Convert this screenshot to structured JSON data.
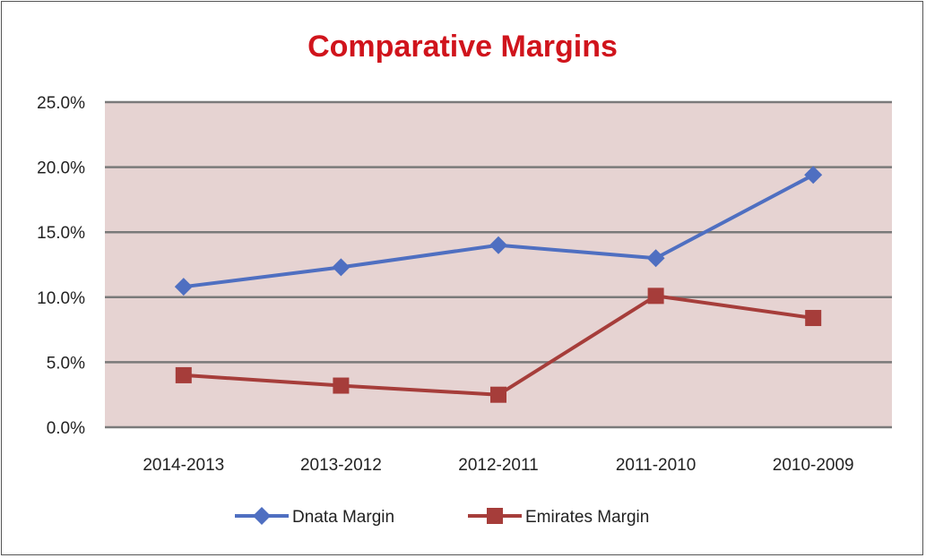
{
  "chart_data": {
    "type": "line",
    "title": "Comparative  Margins",
    "xlabel": "",
    "ylabel": "",
    "categories": [
      "2014-2013",
      "2013-2012",
      "2012-2011",
      "2011-2010",
      "2010-2009"
    ],
    "ylim": [
      0,
      25
    ],
    "yticks": [
      0,
      5,
      10,
      15,
      20,
      25
    ],
    "ytick_labels": [
      "0.0%",
      "5.0%",
      "10.0%",
      "15.0%",
      "20.0%",
      "25.0%"
    ],
    "grid": true,
    "legend_position": "bottom",
    "series": [
      {
        "name": "Dnata Margin",
        "color": "#4f6fc1",
        "marker": "diamond",
        "values": [
          10.8,
          12.3,
          14.0,
          13.0,
          19.4
        ]
      },
      {
        "name": "Emirates Margin",
        "color": "#a63d3a",
        "marker": "square",
        "values": [
          4.0,
          3.2,
          2.5,
          10.1,
          8.4
        ]
      }
    ],
    "colors": {
      "title": "#d0141c",
      "plot_bg": "#e6d3d2",
      "grid": "#7a7a7a"
    }
  }
}
